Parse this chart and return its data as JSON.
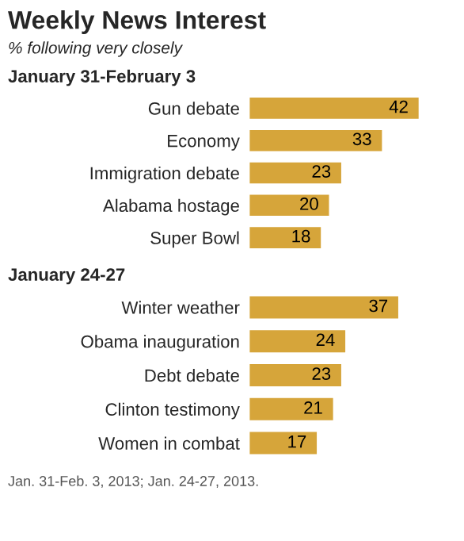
{
  "chart_data": [
    {
      "type": "other",
      "title": "Weekly News Interest",
      "subtitle": "% following very closely"
    },
    {
      "type": "bar",
      "orientation": "horizontal",
      "title": "January 31-February 3",
      "categories": [
        "Gun debate",
        "Economy",
        "Immigration debate",
        "Alabama hostage",
        "Super Bowl"
      ],
      "values": [
        42,
        33,
        23,
        20,
        18
      ],
      "color": "#d6a53a",
      "data_labels": true
    },
    {
      "type": "bar",
      "orientation": "horizontal",
      "title": "January 24-27",
      "categories": [
        "Winter weather",
        "Obama inauguration",
        "Debt debate",
        "Clinton testimony",
        "Women in combat"
      ],
      "values": [
        37,
        24,
        23,
        21,
        17
      ],
      "color": "#d6a53a",
      "data_labels": true,
      "annotations": [
        "Jan. 31-Feb. 3, 2013; Jan. 24-27, 2013."
      ]
    }
  ]
}
